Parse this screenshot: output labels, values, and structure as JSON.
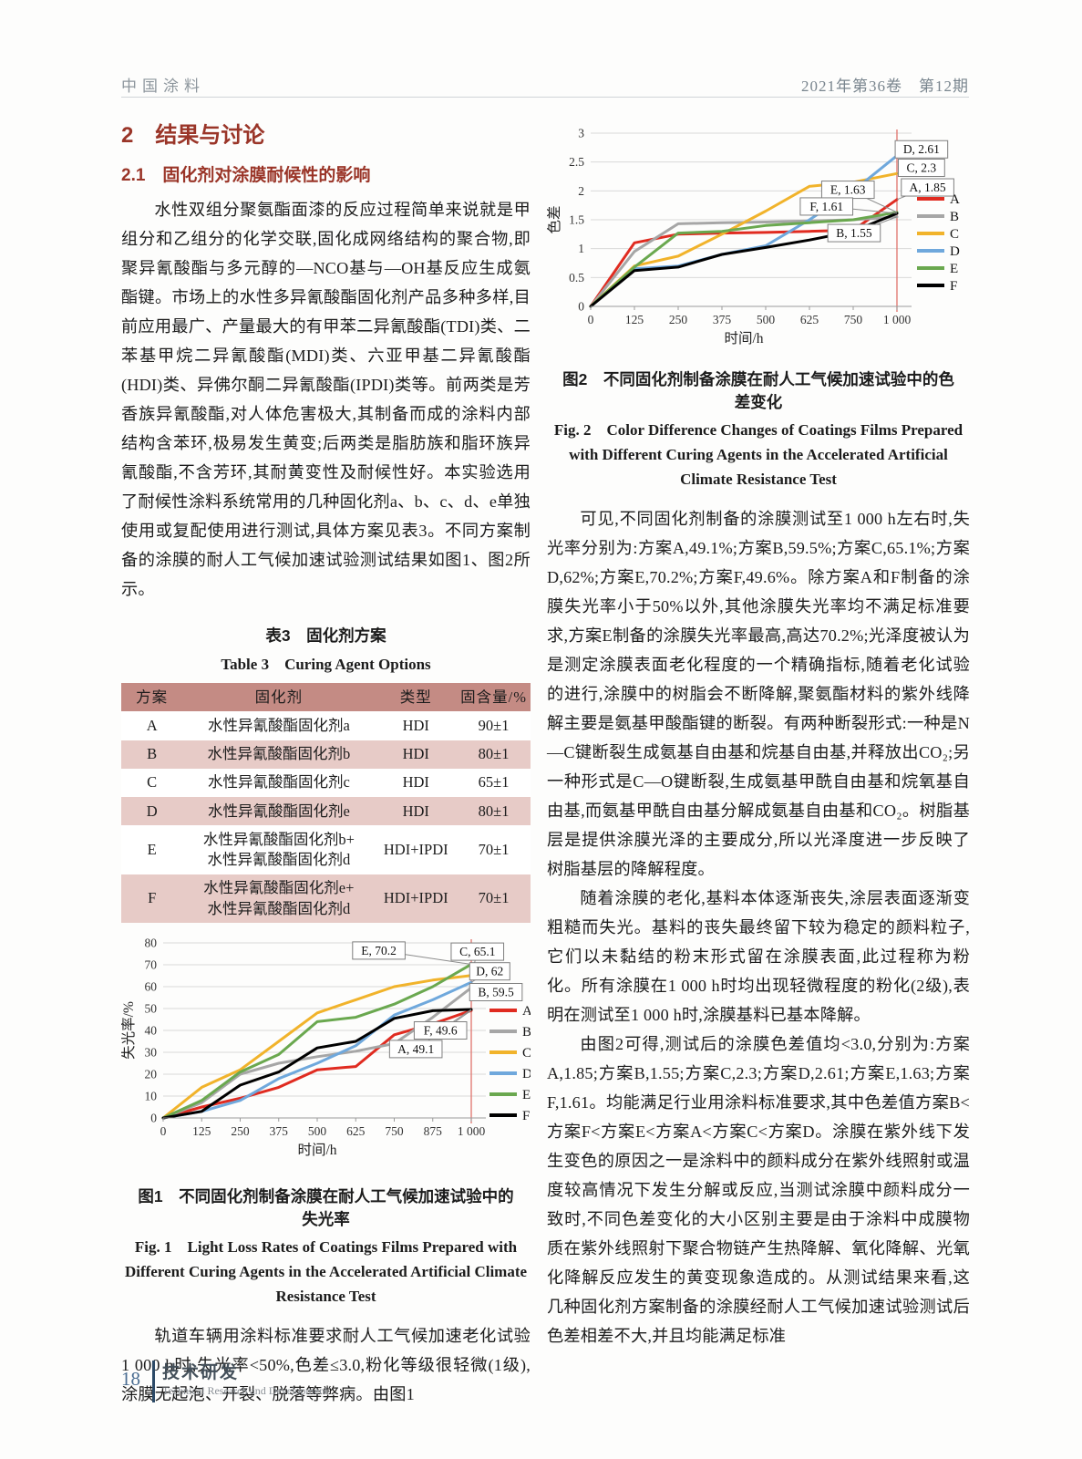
{
  "header": {
    "journal": "中国涂料",
    "issue": "2021年第36卷　第12期"
  },
  "sections": {
    "h2": "2　结果与讨论",
    "h3": "2.1　固化剂对涂膜耐候性的影响"
  },
  "left": {
    "para1": "水性双组分聚氨酯面漆的反应过程简单来说就是甲组分和乙组分的化学交联,固化成网络结构的聚合物,即聚异氰酸酯与多元醇的—NCO基与—OH基反应生成氨酯键。市场上的水性多异氰酸酯固化剂产品多种多样,目前应用最广、产量最大的有甲苯二异氰酸酯(TDI)类、二苯基甲烷二异氰酸酯(MDI)类、六亚甲基二异氰酸酯(HDI)类、异佛尔酮二异氰酸酯(IPDI)类等。前两类是芳香族异氰酸酯,对人体危害极大,其制备而成的涂料内部结构含苯环,极易发生黄变;后两类是脂肪族和脂环族异氰酸酯,不含芳环,其耐黄变性及耐候性好。本实验选用了耐候性涂料系统常用的几种固化剂a、b、c、d、e单独使用或复配使用进行测试,具体方案见表3。不同方案制备的涂膜的耐人工气候加速试验测试结果如图1、图2所示。",
    "para2": "轨道车辆用涂料标准要求耐人工气候加速老化试验1 000 h时,失光率<50%,色差≤3.0,粉化等级很轻微(1级),涂膜无起泡、开裂、脱落等弊病。由图1"
  },
  "table3": {
    "caption_zh": "表3　固化剂方案",
    "caption_en": "Table 3　Curing Agent Options",
    "headers": [
      "方案",
      "固化剂",
      "类型",
      "固含量/%"
    ],
    "rows": [
      [
        "A",
        "水性异氰酸酯固化剂a",
        "HDI",
        "90±1"
      ],
      [
        "B",
        "水性异氰酸酯固化剂b",
        "HDI",
        "80±1"
      ],
      [
        "C",
        "水性异氰酸酯固化剂c",
        "HDI",
        "65±1"
      ],
      [
        "D",
        "水性异氰酸酯固化剂e",
        "HDI",
        "80±1"
      ],
      [
        "E",
        "水性异氰酸酯固化剂b+\n水性异氰酸酯固化剂d",
        "HDI+IPDI",
        "70±1"
      ],
      [
        "F",
        "水性异氰酸酯固化剂e+\n水性异氰酸酯固化剂d",
        "HDI+IPDI",
        "70±1"
      ]
    ],
    "colors": {
      "header_bg": "#c48b84",
      "band_bg": "#e7cbc7"
    }
  },
  "fig1": {
    "caption_zh": "图1　不同固化剂制备涂膜在耐人工气候加速试验中的失光率",
    "caption_en": "Fig. 1　Light Loss Rates of Coatings Films Prepared with Different Curing Agents in the Accelerated Artificial Climate Resistance Test",
    "chart_data": {
      "type": "line",
      "x_tick_labels": [
        "0",
        "125",
        "250",
        "375",
        "500",
        "625",
        "750",
        "875",
        "1 000"
      ],
      "y_tick_labels": [
        "0",
        "10",
        "20",
        "30",
        "40",
        "50",
        "60",
        "70",
        "80"
      ],
      "ylim": [
        0,
        80
      ],
      "xlabel": "时间/h",
      "ylabel": "失光率/%",
      "grid": true,
      "legend_position": "right",
      "marker_line_color": "#e0736c",
      "series": [
        {
          "name": "A",
          "color": "#e02b20",
          "values": [
            0,
            5,
            9,
            14,
            22,
            23.5,
            38,
            43,
            49.1
          ]
        },
        {
          "name": "B",
          "color": "#a6a6a6",
          "values": [
            0,
            7,
            20,
            25,
            28,
            30.5,
            34,
            46,
            59.5
          ]
        },
        {
          "name": "C",
          "color": "#f1b32b",
          "values": [
            0,
            14,
            22,
            35,
            48,
            54,
            60,
            63,
            65.1
          ]
        },
        {
          "name": "D",
          "color": "#6fa8dc",
          "values": [
            0,
            3,
            8,
            18,
            25,
            33,
            47,
            54,
            62
          ]
        },
        {
          "name": "E",
          "color": "#6aa84f",
          "values": [
            0,
            8,
            21,
            29,
            44,
            46,
            52,
            60,
            70.2
          ]
        },
        {
          "name": "F",
          "color": "#000000",
          "values": [
            0,
            3,
            15,
            21,
            32,
            35,
            45.5,
            49,
            49.6
          ]
        }
      ],
      "annotations": [
        {
          "text": "E, 70.2",
          "fx": 0.7,
          "val": 76.5,
          "target": 70.2
        },
        {
          "text": "C, 65.1",
          "fx": 1.02,
          "val": 76.0,
          "target": 65.1
        },
        {
          "text": "D, 62",
          "fx": 1.06,
          "val": 67.0,
          "target": 62
        },
        {
          "text": "B, 59.5",
          "fx": 1.08,
          "val": 57.5,
          "target": 59.5
        },
        {
          "text": "F, 49.6",
          "fx": 0.9,
          "val": 40.0,
          "target": 49.6
        },
        {
          "text": "A, 49.1",
          "fx": 0.82,
          "val": 31.5,
          "target": 49.1
        }
      ]
    }
  },
  "fig2": {
    "caption_zh": "图2　不同固化剂制备涂膜在耐人工气候加速试验中的色差变化",
    "caption_en": "Fig. 2　Color Difference Changes of Coatings Films Prepared with Different Curing Agents in the Accelerated Artificial Climate Resistance Test",
    "chart_data": {
      "type": "line",
      "x_tick_labels": [
        "0",
        "125",
        "250",
        "375",
        "500",
        "625",
        "750",
        "1 000"
      ],
      "y_tick_labels": [
        "0",
        "0.5",
        "1",
        "1.5",
        "2",
        "2.5",
        "3"
      ],
      "ylim": [
        0,
        3
      ],
      "xlabel": "时间/h",
      "ylabel": "色差",
      "grid": true,
      "legend_position": "right",
      "marker_line_color": "#e0736c",
      "series": [
        {
          "name": "A",
          "color": "#e02b20",
          "values": [
            0,
            1.1,
            1.25,
            1.27,
            1.28,
            1.3,
            1.32,
            1.85
          ]
        },
        {
          "name": "B",
          "color": "#a6a6a6",
          "values": [
            0,
            0.95,
            1.43,
            1.45,
            1.46,
            1.48,
            1.5,
            1.55
          ]
        },
        {
          "name": "C",
          "color": "#f1b32b",
          "values": [
            0,
            0.7,
            0.87,
            1.25,
            1.65,
            2.08,
            2.15,
            2.3
          ]
        },
        {
          "name": "D",
          "color": "#6fa8dc",
          "values": [
            0,
            0.65,
            0.7,
            0.9,
            1.05,
            1.5,
            2.0,
            2.61
          ]
        },
        {
          "name": "E",
          "color": "#6aa84f",
          "values": [
            0,
            0.68,
            1.27,
            1.3,
            1.4,
            1.45,
            1.5,
            1.63
          ]
        },
        {
          "name": "F",
          "color": "#000000",
          "values": [
            0,
            0.62,
            0.68,
            0.9,
            1.02,
            1.15,
            1.3,
            1.61
          ]
        }
      ],
      "annotations": [
        {
          "text": "D, 2.61",
          "fx": 1.08,
          "val": 2.72,
          "target": 2.61
        },
        {
          "text": "C, 2.3",
          "fx": 1.08,
          "val": 2.4,
          "target": 2.3
        },
        {
          "text": "A, 1.85",
          "fx": 1.1,
          "val": 2.06,
          "target": 1.85
        },
        {
          "text": "E, 1.63",
          "fx": 0.84,
          "val": 2.02,
          "target": 1.63
        },
        {
          "text": "F, 1.61",
          "fx": 0.77,
          "val": 1.73,
          "target": 1.61
        },
        {
          "text": "B, 1.55",
          "fx": 0.86,
          "val": 1.27,
          "target": 1.55
        }
      ]
    }
  },
  "right": {
    "para1": "可见,不同固化剂制备的涂膜测试至1 000 h左右时,失光率分别为:方案A,49.1%;方案B,59.5%;方案C,65.1%;方案D,62%;方案E,70.2%;方案F,49.6%。除方案A和F制备的涂膜失光率小于50%以外,其他涂膜失光率均不满足标准要求,方案E制备的涂膜失光率最高,高达70.2%;光泽度被认为是测定涂膜表面老化程度的一个精确指标,随着老化试验的进行,涂膜中的树脂会不断降解,聚氨酯材料的紫外线降解主要是氨基甲酸酯键的断裂。有两种断裂形式:一种是N—C键断裂生成氨基自由基和烷基自由基,并释放出CO₂;另一种形式是C—O键断裂,生成氨基甲酰自由基和烷氧基自由基,而氨基甲酰自由基分解成氨基自由基和CO₂。树脂基层是提供涂膜光泽的主要成分,所以光泽度进一步反映了树脂基层的降解程度。",
    "para2": "随着涂膜的老化,基料本体逐渐丧失,涂层表面逐渐变粗糙而失光。基料的丧失最终留下较为稳定的颜料粒子,它们以未黏结的粉末形式留在涂膜表面,此过程称为粉化。所有涂膜在1 000 h时均出现轻微程度的粉化(2级),表明在测试至1 000 h时,涂膜基料已基本降解。",
    "para3": "由图2可得,测试后的涂膜色差值均<3.0,分别为:方案A,1.85;方案B,1.55;方案C,2.3;方案D,2.61;方案E,1.63;方案F,1.61。均能满足行业用涂料标准要求,其中色差值方案B<方案F<方案E<方案A<方案C<方案D。涂膜在紫外线下发生变色的原因之一是涂料中的颜料成分在紫外线照射或温度较高情况下发生分解或反应,当测试涂膜中颜料成分一致时,不同色差变化的大小区别主要是由于涂料中成膜物质在紫外线照射下聚合物链产生热降解、氧化降解、光氧化降解反应发生的黄变现象造成的。从测试结果来看,这几种固化剂方案制备的涂膜经耐人工气候加速试验测试后色差相差不大,并且均能满足标准"
  },
  "footer": {
    "page": "18",
    "column_zh": "技术研发",
    "column_en": "Technical Research and Development"
  }
}
